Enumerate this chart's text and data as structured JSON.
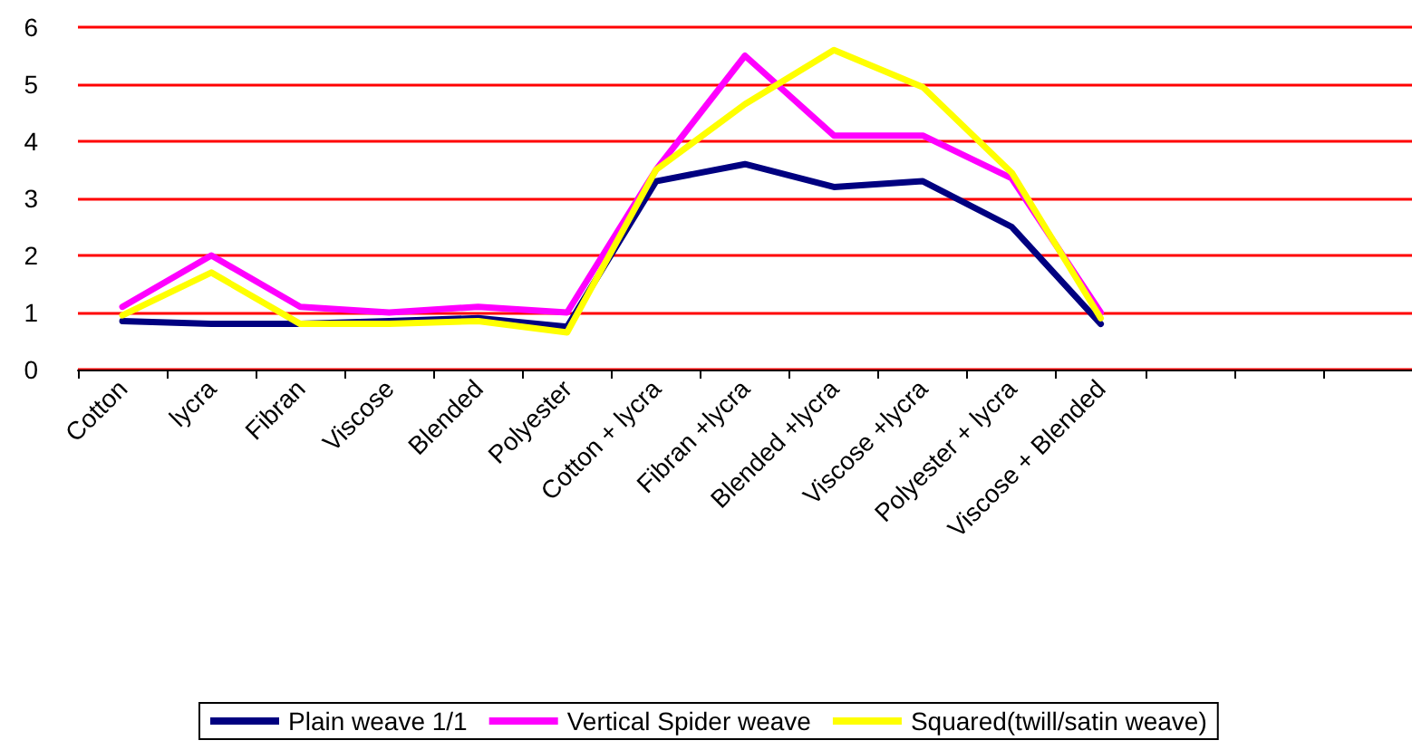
{
  "chart_data": {
    "type": "line",
    "categories": [
      "Cotton",
      "lycra",
      "Fibran",
      "Viscose",
      "Blended",
      "Polyester",
      "Cotton + lycra",
      "Fibran +lycra",
      "Blended +lycra",
      "Viscose +lycra",
      "Polyester + lycra",
      "Viscose + Blended",
      null,
      null,
      null
    ],
    "series": [
      {
        "name": "Plain weave 1/1",
        "color": "#000080",
        "values": [
          0.85,
          0.8,
          0.8,
          0.85,
          0.9,
          0.75,
          3.3,
          3.6,
          3.2,
          3.3,
          2.5,
          0.8,
          null,
          null,
          null
        ]
      },
      {
        "name": "Vertical Spider weave",
        "color": "#ff00ff",
        "values": [
          1.1,
          2.0,
          1.1,
          1.0,
          1.1,
          1.0,
          3.5,
          5.5,
          4.1,
          4.1,
          3.35,
          1.0,
          null,
          null,
          null
        ]
      },
      {
        "name": "Squared(twill/satin weave)",
        "color": "#ffff00",
        "values": [
          0.95,
          1.7,
          0.8,
          0.8,
          0.85,
          0.65,
          3.5,
          4.65,
          5.6,
          4.95,
          3.45,
          0.9,
          null,
          null,
          null
        ]
      }
    ],
    "ylim": [
      0,
      6
    ],
    "yticks": [
      0,
      1,
      2,
      3,
      4,
      5,
      6
    ],
    "grid": "y",
    "legend": "bottom",
    "marker": "none",
    "line_style": "solid"
  }
}
